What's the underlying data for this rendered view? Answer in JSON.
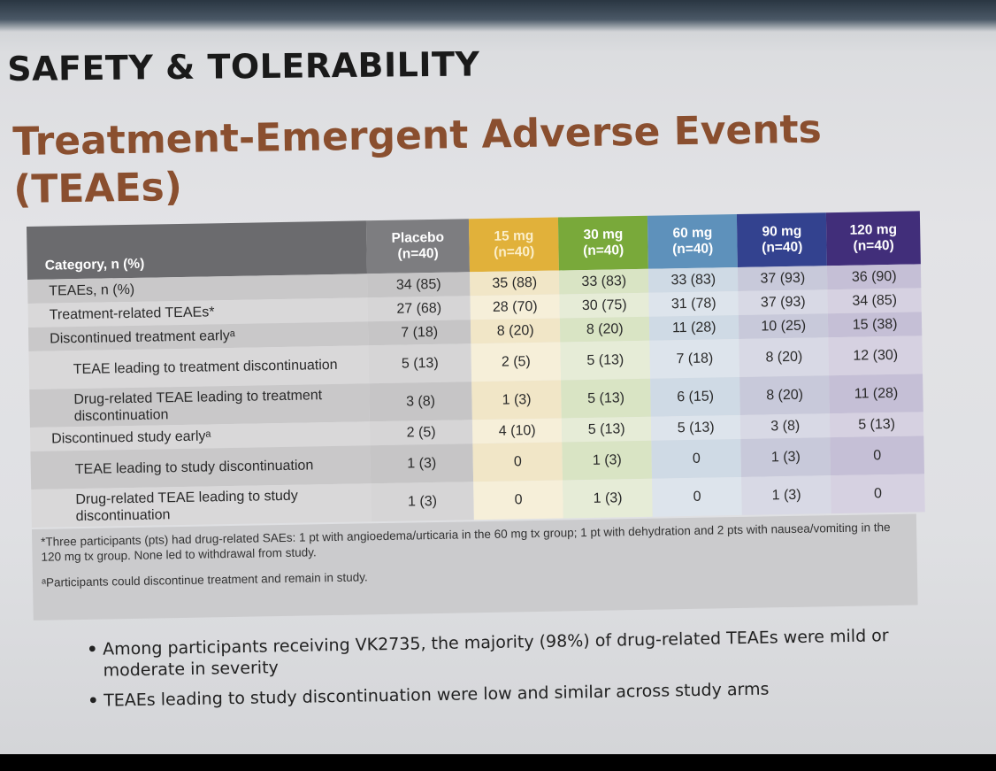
{
  "header": {
    "section_title": "SAFETY & TOLERABILITY",
    "title_line1": "Treatment-Emergent Adverse Events",
    "title_line2": "(TEAEs)"
  },
  "table": {
    "category_header": "Category, n (%)",
    "columns": [
      {
        "dose": "Placebo",
        "n": "(n=40)"
      },
      {
        "dose": "15 mg",
        "n": "(n=40)"
      },
      {
        "dose": "30 mg",
        "n": "(n=40)"
      },
      {
        "dose": "60 mg",
        "n": "(n=40)"
      },
      {
        "dose": "90 mg",
        "n": "(n=40)"
      },
      {
        "dose": "120 mg",
        "n": "(n=40)"
      }
    ],
    "rows": [
      {
        "label": "TEAEs, n (%)",
        "values": [
          "34 (85)",
          "35 (88)",
          "33 (83)",
          "33 (83)",
          "37 (93)",
          "36 (90)"
        ]
      },
      {
        "label": "Treatment-related TEAEs*",
        "values": [
          "27 (68)",
          "28 (70)",
          "30 (75)",
          "31 (78)",
          "37 (93)",
          "34 (85)"
        ]
      },
      {
        "label": "Discontinued treatment earlyᵃ",
        "values": [
          "7 (18)",
          "8 (20)",
          "8 (20)",
          "11 (28)",
          "10 (25)",
          "15 (38)"
        ]
      },
      {
        "label": "TEAE leading to treatment discontinuation",
        "values": [
          "5 (13)",
          "2 (5)",
          "5 (13)",
          "7 (18)",
          "8 (20)",
          "12 (30)"
        ]
      },
      {
        "label": "Drug-related TEAE leading to treatment discontinuation",
        "values": [
          "3 (8)",
          "1 (3)",
          "5 (13)",
          "6 (15)",
          "8 (20)",
          "11 (28)"
        ]
      },
      {
        "label": "Discontinued study earlyᵃ",
        "values": [
          "2 (5)",
          "4 (10)",
          "5 (13)",
          "5 (13)",
          "3 (8)",
          "5 (13)"
        ]
      },
      {
        "label": "TEAE leading to study discontinuation",
        "values": [
          "1 (3)",
          "0",
          "1 (3)",
          "0",
          "1 (3)",
          "0"
        ]
      },
      {
        "label": "Drug-related TEAE leading to study discontinuation",
        "values": [
          "1 (3)",
          "0",
          "1 (3)",
          "0",
          "1 (3)",
          "0"
        ]
      }
    ]
  },
  "footnotes": {
    "note1": "*Three participants (pts) had drug-related SAEs: 1 pt with angioedema/urticaria in the 60 mg tx group; 1 pt with dehydration and 2 pts with nausea/vomiting in the 120 mg tx group. None led to withdrawal from study.",
    "note2": "ᵃParticipants could discontinue treatment and remain in study."
  },
  "bullets": [
    "Among participants receiving VK2735, the majority (98%) of drug-related TEAEs were mild or moderate in severity",
    "TEAEs leading to study discontinuation were low and similar across study arms"
  ],
  "colors": {
    "title": "#8a4f2f",
    "placebo": "#7d7d80",
    "dose_15mg": "#e1b13a",
    "dose_30mg": "#79a93a",
    "dose_60mg": "#5e91bb",
    "dose_90mg": "#33428f",
    "dose_120mg": "#412e7a"
  }
}
